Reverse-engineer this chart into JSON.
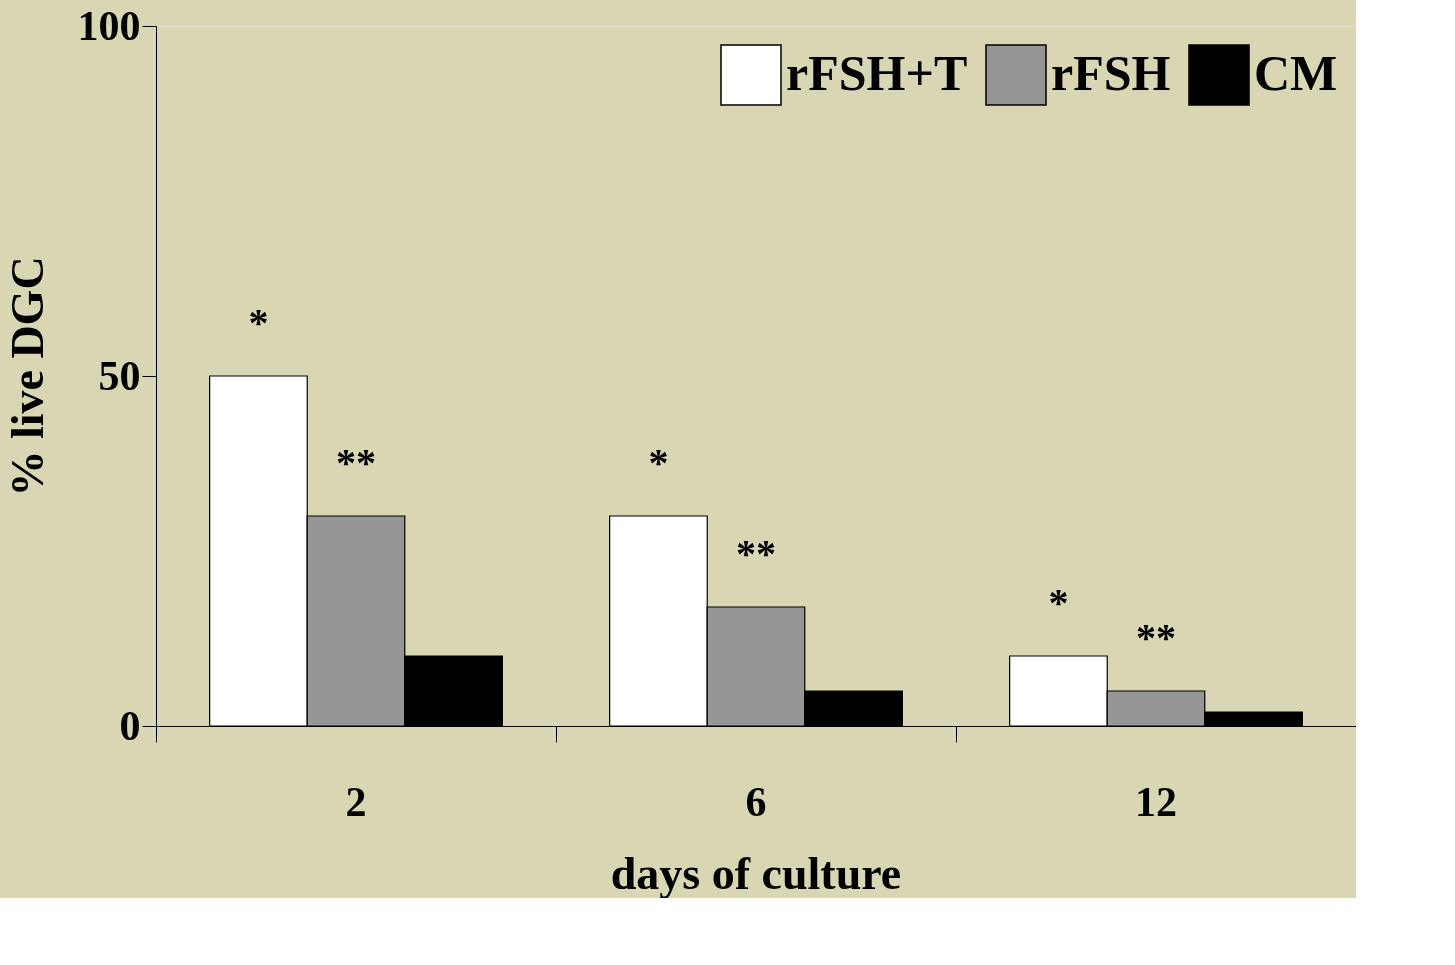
{
  "chart_data": {
    "type": "bar",
    "xlabel": "days of culture",
    "ylabel": "% live DGC",
    "categories": [
      "2",
      "6",
      "12"
    ],
    "series": [
      {
        "name": "rFSH+T",
        "color": "#ffffff",
        "values": [
          50,
          30,
          10
        ]
      },
      {
        "name": "rFSH",
        "color": "#969696",
        "values": [
          30,
          17,
          5
        ]
      },
      {
        "name": "CM",
        "color": "#000000",
        "values": [
          10,
          5,
          2
        ]
      }
    ],
    "ylim": [
      0,
      100
    ],
    "yticks": [
      0,
      50,
      100
    ],
    "grid": false,
    "legend": "top right",
    "annotations": [
      "*",
      "**",
      "*",
      "**",
      "*",
      "**"
    ]
  }
}
